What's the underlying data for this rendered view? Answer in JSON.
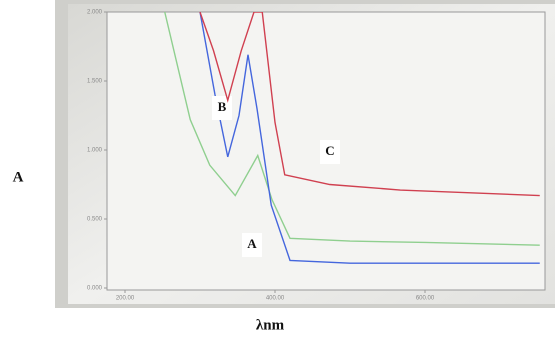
{
  "chart_data": {
    "type": "line",
    "y_label": "A",
    "x_label": "λnm",
    "xlim": [
      176,
      760
    ],
    "ylim": [
      0,
      2
    ],
    "xticks": [
      {
        "value": 200,
        "label": "200.00"
      },
      {
        "value": 400,
        "label": "400.00"
      },
      {
        "value": 600,
        "label": "600.00"
      }
    ],
    "yticks": [
      {
        "value": 0,
        "label": "0.000"
      },
      {
        "value": 0.5,
        "label": "0.500"
      },
      {
        "value": 1,
        "label": "1.000"
      },
      {
        "value": 1.5,
        "label": "1.500"
      },
      {
        "value": 2,
        "label": "2.000"
      }
    ],
    "series": [
      {
        "name": "A",
        "color": "#8fcf8f",
        "x": [
          253,
          287,
          313,
          347,
          377,
          396,
          420,
          500,
          600,
          753
        ],
        "values": [
          2.0,
          1.22,
          0.89,
          0.67,
          0.96,
          0.64,
          0.36,
          0.34,
          0.33,
          0.31
        ]
      },
      {
        "name": "B",
        "color": "#4466dd",
        "x": [
          300,
          320,
          337,
          352,
          364,
          376,
          395,
          420,
          500,
          600,
          753
        ],
        "values": [
          2.0,
          1.4,
          0.95,
          1.25,
          1.69,
          1.3,
          0.6,
          0.2,
          0.18,
          0.18,
          0.18
        ]
      },
      {
        "name": "C",
        "color": "#d04050",
        "x": [
          300,
          318,
          337,
          355,
          372,
          383,
          400,
          413,
          473,
          567,
          753
        ],
        "values": [
          2.0,
          1.72,
          1.36,
          1.72,
          2.0,
          2.0,
          1.2,
          0.82,
          0.75,
          0.71,
          0.67
        ]
      }
    ]
  }
}
